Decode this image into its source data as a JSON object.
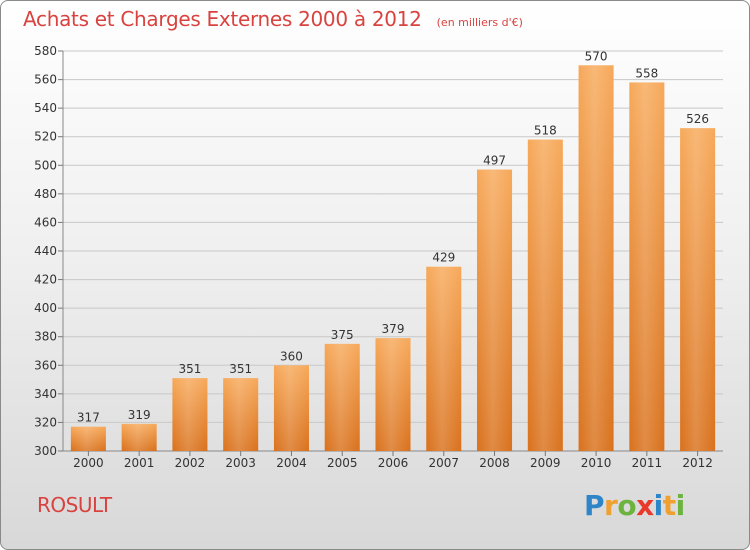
{
  "header": {
    "title": "Achats et Charges Externes 2000 à 2012",
    "unit": "(en milliers d'€)"
  },
  "place": "ROSULT",
  "logo": {
    "text": "Proxiti",
    "letters": [
      {
        "ch": "P",
        "color": "#2e86c9"
      },
      {
        "ch": "r",
        "color": "#f0a030"
      },
      {
        "ch": "o",
        "color": "#6cb33f"
      },
      {
        "ch": "x",
        "color": "#e8392b"
      },
      {
        "ch": "i",
        "color": "#2e86c9"
      },
      {
        "ch": "t",
        "color": "#f0a030"
      },
      {
        "ch": "i",
        "color": "#6cb33f"
      }
    ]
  },
  "colors": {
    "title": "#d9433f",
    "bar_light": "#f7a95a",
    "bar_dark": "#d9711c",
    "grid": "#c8c8c8"
  },
  "chart_data": {
    "type": "bar",
    "title": "Achats et Charges Externes 2000 à 2012",
    "xlabel": "",
    "ylabel": "",
    "categories": [
      "2000",
      "2001",
      "2002",
      "2003",
      "2004",
      "2005",
      "2006",
      "2007",
      "2008",
      "2009",
      "2010",
      "2011",
      "2012"
    ],
    "values": [
      317,
      319,
      351,
      351,
      360,
      375,
      379,
      429,
      497,
      518,
      570,
      558,
      526
    ],
    "ylim": [
      300,
      580
    ],
    "yticks": [
      300,
      320,
      340,
      360,
      380,
      400,
      420,
      440,
      460,
      480,
      500,
      520,
      540,
      560,
      580
    ],
    "grid": true
  }
}
